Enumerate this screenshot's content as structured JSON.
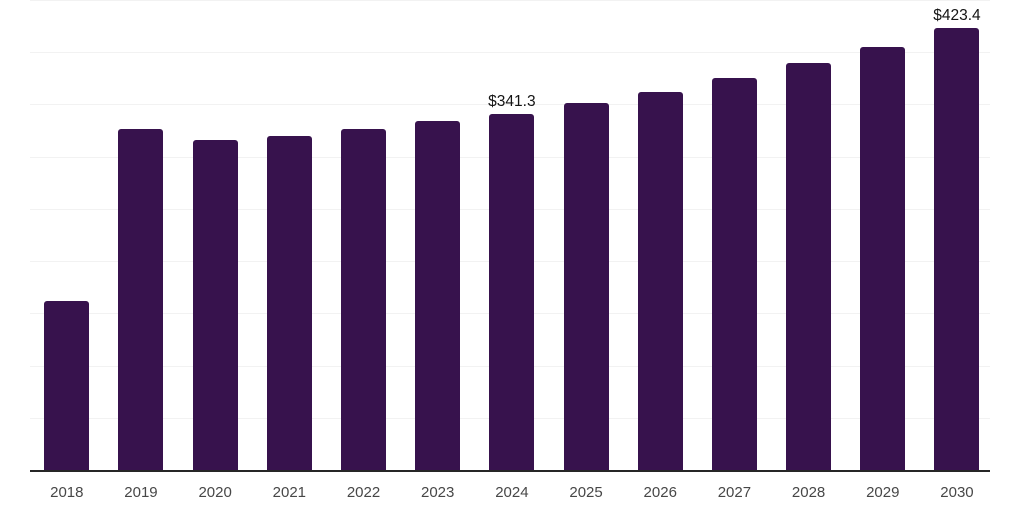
{
  "chart_data": {
    "type": "bar",
    "title": "",
    "xlabel": "",
    "ylabel": "",
    "categories": [
      "2018",
      "2019",
      "2020",
      "2021",
      "2022",
      "2023",
      "2024",
      "2025",
      "2026",
      "2027",
      "2028",
      "2029",
      "2030"
    ],
    "values": [
      162.0,
      326.6,
      316.4,
      320.2,
      326.6,
      334.0,
      341.3,
      351.5,
      362.3,
      375.1,
      389.7,
      404.7,
      423.4
    ],
    "annotations": [
      {
        "category": "2024",
        "text": "$341.3"
      },
      {
        "category": "2030",
        "text": "$423.4"
      }
    ],
    "ylim": [
      0,
      450
    ],
    "grid_step": 50,
    "grid": "horizontal-only",
    "legend": "none",
    "y_axis_labels": "none",
    "colors": {
      "bar": "#37124D",
      "axis_line": "#262626",
      "gridline": "#f2f2f2",
      "x_label_text": "#474747",
      "annotation_text": "#141414",
      "background": "#ffffff"
    }
  }
}
